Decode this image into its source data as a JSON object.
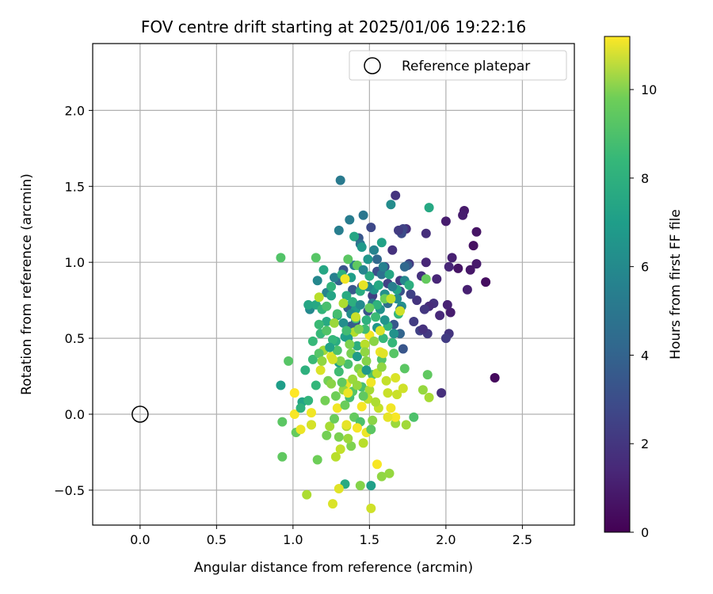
{
  "chart_data": {
    "type": "scatter",
    "title": "FOV centre drift starting at 2025/01/06 19:22:16",
    "xlabel": "Angular distance from reference (arcmin)",
    "ylabel": "Rotation from reference (arcmin)",
    "xlim": [
      -0.31,
      2.84
    ],
    "ylim": [
      -0.73,
      2.44
    ],
    "xticks": [
      0.0,
      0.5,
      1.0,
      1.5,
      2.0,
      2.5
    ],
    "xtick_labels": [
      "0.0",
      "0.5",
      "1.0",
      "1.5",
      "2.0",
      "2.5"
    ],
    "yticks": [
      -0.5,
      0.0,
      0.5,
      1.0,
      1.5,
      2.0
    ],
    "ytick_labels": [
      "−0.5",
      "0.0",
      "0.5",
      "1.0",
      "1.5",
      "2.0"
    ],
    "grid": true,
    "legend": {
      "placement": "upper right",
      "entries": [
        "Reference platepar"
      ]
    },
    "reference_point": {
      "label": "Reference platepar",
      "x": 0.0,
      "y": 0.0
    },
    "colorbar": {
      "label": "Hours from first FF file",
      "colormap": "viridis",
      "min": 0,
      "max": 11.2,
      "ticks": [
        0,
        2,
        4,
        6,
        8,
        10
      ],
      "tick_labels": [
        "0",
        "2",
        "4",
        "6",
        "8",
        "10"
      ]
    },
    "points": [
      [
        2.32,
        0.24,
        0.3
      ],
      [
        2.26,
        0.87,
        0.4
      ],
      [
        2.2,
        1.2,
        0.6
      ],
      [
        2.18,
        1.11,
        0.5
      ],
      [
        2.2,
        0.99,
        0.8
      ],
      [
        2.16,
        0.95,
        0.7
      ],
      [
        2.14,
        0.82,
        1.0
      ],
      [
        2.12,
        1.34,
        0.8
      ],
      [
        2.11,
        1.31,
        0.9
      ],
      [
        2.08,
        0.96,
        0.6
      ],
      [
        2.04,
        1.03,
        1.0
      ],
      [
        2.02,
        0.97,
        1.2
      ],
      [
        2.03,
        0.67,
        0.9
      ],
      [
        2.01,
        0.72,
        1.1
      ],
      [
        2.0,
        1.27,
        0.9
      ],
      [
        2.02,
        0.53,
        1.7
      ],
      [
        2.0,
        0.5,
        2.0
      ],
      [
        1.96,
        0.65,
        1.3
      ],
      [
        1.94,
        0.89,
        1.2
      ],
      [
        1.92,
        0.73,
        1.6
      ],
      [
        1.89,
        0.71,
        1.4
      ],
      [
        1.87,
        1.0,
        1.2
      ],
      [
        1.86,
        0.69,
        1.8
      ],
      [
        1.87,
        1.19,
        1.5
      ],
      [
        1.84,
        0.91,
        1.6
      ],
      [
        1.81,
        0.75,
        1.7
      ],
      [
        1.79,
        0.61,
        2.0
      ],
      [
        1.77,
        0.79,
        2.2
      ],
      [
        1.76,
        0.99,
        1.9
      ],
      [
        1.74,
        1.22,
        1.5
      ],
      [
        1.72,
        1.22,
        2.3
      ],
      [
        1.71,
        1.19,
        2.6
      ],
      [
        1.69,
        1.21,
        2.0
      ],
      [
        1.7,
        0.88,
        1.9
      ],
      [
        1.7,
        0.81,
        2.8
      ],
      [
        1.67,
        1.44,
        1.7
      ],
      [
        1.65,
        1.08,
        1.6
      ],
      [
        1.62,
        0.86,
        2.2
      ],
      [
        1.6,
        0.97,
        2.4
      ],
      [
        1.6,
        0.79,
        2.5
      ],
      [
        1.55,
        0.94,
        2.7
      ],
      [
        1.52,
        0.78,
        2.1
      ],
      [
        1.51,
        1.23,
        2.5
      ],
      [
        1.49,
        0.68,
        2.9
      ],
      [
        1.45,
        0.84,
        2.6
      ],
      [
        1.43,
        1.16,
        3.0
      ],
      [
        1.41,
        0.61,
        2.8
      ],
      [
        1.39,
        0.82,
        3.1
      ],
      [
        1.38,
        0.58,
        3.3
      ],
      [
        1.36,
        0.7,
        3.4
      ],
      [
        1.33,
        0.95,
        2.9
      ],
      [
        1.3,
        0.88,
        3.6
      ],
      [
        1.72,
        0.43,
        3.0
      ],
      [
        1.66,
        0.59,
        3.1
      ],
      [
        1.83,
        0.55,
        2.2
      ],
      [
        1.88,
        0.53,
        1.9
      ],
      [
        1.85,
        0.56,
        1.6
      ],
      [
        1.97,
        0.14,
        1.5
      ],
      [
        1.75,
        0.98,
        3.1
      ],
      [
        1.73,
        0.97,
        3.8
      ],
      [
        1.7,
        0.53,
        3.6
      ],
      [
        1.62,
        0.73,
        4.0
      ],
      [
        1.58,
        0.92,
        4.2
      ],
      [
        1.55,
        1.02,
        3.8
      ],
      [
        1.52,
        0.73,
        4.4
      ],
      [
        1.46,
        1.31,
        4.4
      ],
      [
        1.44,
        1.12,
        4.3
      ],
      [
        1.4,
        0.98,
        4.6
      ],
      [
        1.37,
        1.28,
        4.7
      ],
      [
        1.31,
        1.54,
        4.6
      ],
      [
        1.3,
        1.21,
        4.8
      ],
      [
        1.27,
        0.9,
        4.9
      ],
      [
        1.22,
        0.8,
        5.0
      ],
      [
        1.16,
        0.88,
        5.2
      ],
      [
        1.11,
        0.69,
        5.3
      ],
      [
        1.73,
        0.88,
        5.2
      ],
      [
        1.68,
        0.76,
        5.4
      ],
      [
        1.64,
        1.38,
        5.4
      ],
      [
        1.6,
        0.79,
        5.6
      ],
      [
        1.57,
        0.69,
        5.7
      ],
      [
        1.53,
        0.82,
        5.8
      ],
      [
        1.49,
        1.02,
        5.9
      ],
      [
        1.45,
        1.1,
        6.0
      ],
      [
        1.41,
        0.69,
        6.1
      ],
      [
        1.38,
        0.9,
        6.2
      ],
      [
        1.34,
        0.51,
        6.3
      ],
      [
        1.29,
        0.65,
        6.4
      ],
      [
        1.25,
        0.78,
        6.5
      ],
      [
        1.2,
        0.95,
        6.6
      ],
      [
        1.15,
        0.72,
        6.7
      ],
      [
        1.1,
        0.72,
        6.6
      ],
      [
        1.06,
        0.08,
        6.5
      ],
      [
        0.92,
        0.19,
        6.2
      ],
      [
        1.22,
        0.61,
        6.8
      ],
      [
        1.28,
        0.48,
        6.9
      ],
      [
        1.35,
        0.78,
        6.8
      ],
      [
        1.42,
        0.45,
        7.0
      ],
      [
        1.48,
        0.62,
        7.1
      ],
      [
        1.55,
        0.72,
        7.2
      ],
      [
        1.62,
        0.58,
        7.3
      ],
      [
        1.69,
        0.66,
        7.4
      ],
      [
        1.76,
        0.85,
        7.0
      ],
      [
        1.89,
        1.36,
        6.7
      ],
      [
        1.58,
        1.13,
        6.4
      ],
      [
        1.4,
        1.17,
        6.6
      ],
      [
        1.51,
        -0.47,
        6.3
      ],
      [
        1.34,
        -0.46,
        6.8
      ],
      [
        1.26,
        0.49,
        7.4
      ],
      [
        1.18,
        0.53,
        7.5
      ],
      [
        1.13,
        0.36,
        7.6
      ],
      [
        1.3,
        0.28,
        7.7
      ],
      [
        1.37,
        0.11,
        7.8
      ],
      [
        1.45,
        0.18,
        7.9
      ],
      [
        1.52,
        0.26,
        8.0
      ],
      [
        1.58,
        0.36,
        8.1
      ],
      [
        1.66,
        0.4,
        8.2
      ],
      [
        1.73,
        0.3,
        8.3
      ],
      [
        1.79,
        -0.02,
        8.0
      ],
      [
        1.88,
        0.26,
        8.4
      ],
      [
        1.87,
        0.89,
        8.5
      ],
      [
        1.6,
        0.76,
        8.6
      ],
      [
        1.5,
        0.7,
        8.5
      ],
      [
        1.42,
        0.98,
        8.4
      ],
      [
        1.36,
        1.02,
        8.3
      ],
      [
        1.15,
        1.03,
        8.2
      ],
      [
        0.92,
        1.03,
        8.1
      ],
      [
        0.97,
        0.35,
        8.2
      ],
      [
        0.93,
        -0.05,
        8.3
      ],
      [
        0.93,
        -0.28,
        8.4
      ],
      [
        1.02,
        -0.12,
        8.5
      ],
      [
        1.12,
        -0.07,
        8.6
      ],
      [
        1.16,
        -0.3,
        8.7
      ],
      [
        1.22,
        -0.14,
        8.8
      ],
      [
        1.3,
        -0.15,
        8.9
      ],
      [
        1.38,
        -0.21,
        9.0
      ],
      [
        1.44,
        -0.47,
        9.1
      ],
      [
        1.52,
        -0.04,
        9.2
      ],
      [
        1.58,
        -0.41,
        9.3
      ],
      [
        1.63,
        -0.39,
        9.4
      ],
      [
        1.67,
        -0.06,
        9.5
      ],
      [
        1.74,
        -0.07,
        9.6
      ],
      [
        1.85,
        0.16,
        9.4
      ],
      [
        1.89,
        0.11,
        9.7
      ],
      [
        1.2,
        0.42,
        9.6
      ],
      [
        1.27,
        0.6,
        9.5
      ],
      [
        1.33,
        0.73,
        9.8
      ],
      [
        1.4,
        0.54,
        9.9
      ],
      [
        1.47,
        0.46,
        10.0
      ],
      [
        1.55,
        0.27,
        10.1
      ],
      [
        1.61,
        0.22,
        10.2
      ],
      [
        1.68,
        0.13,
        10.3
      ],
      [
        1.72,
        0.17,
        10.4
      ],
      [
        1.28,
        -0.28,
        10.0
      ],
      [
        1.09,
        -0.53,
        9.8
      ],
      [
        1.24,
        -0.08,
        9.7
      ],
      [
        1.35,
        -0.08,
        9.9
      ],
      [
        1.49,
        0.1,
        10.1
      ],
      [
        1.56,
        0.04,
        10.2
      ],
      [
        1.62,
        0.14,
        10.3
      ],
      [
        1.18,
        0.29,
        10.6
      ],
      [
        1.25,
        0.38,
        10.7
      ],
      [
        1.35,
        0.2,
        10.8
      ],
      [
        1.42,
        0.38,
        10.9
      ],
      [
        1.5,
        0.52,
        11.0
      ],
      [
        1.57,
        0.41,
        10.9
      ],
      [
        1.64,
        0.04,
        11.0
      ],
      [
        1.67,
        -0.02,
        11.1
      ],
      [
        1.55,
        -0.33,
        11.1
      ],
      [
        1.48,
        -0.12,
        10.9
      ],
      [
        1.35,
        -0.07,
        10.8
      ],
      [
        1.26,
        -0.59,
        10.6
      ],
      [
        1.3,
        -0.49,
        10.7
      ],
      [
        1.51,
        -0.62,
        10.4
      ],
      [
        1.12,
        -0.07,
        10.5
      ],
      [
        1.01,
        0.14,
        11.2
      ],
      [
        1.01,
        0.0,
        11.1
      ],
      [
        1.05,
        -0.1,
        10.9
      ],
      [
        1.12,
        0.01,
        11.0
      ],
      [
        1.29,
        0.04,
        11.0
      ],
      [
        1.45,
        0.05,
        11.1
      ],
      [
        1.38,
        0.4,
        8.9
      ],
      [
        1.43,
        0.3,
        9.0
      ],
      [
        1.48,
        0.35,
        9.1
      ],
      [
        1.53,
        0.48,
        9.2
      ],
      [
        1.58,
        0.31,
        9.3
      ],
      [
        1.33,
        0.16,
        9.4
      ],
      [
        1.39,
        0.23,
        9.5
      ],
      [
        1.45,
        0.27,
        9.6
      ],
      [
        1.5,
        0.16,
        9.7
      ],
      [
        1.54,
        0.08,
        9.8
      ],
      [
        1.23,
        0.22,
        8.8
      ],
      [
        1.28,
        0.12,
        8.7
      ],
      [
        1.34,
        0.06,
        8.6
      ],
      [
        1.4,
        -0.02,
        8.5
      ],
      [
        1.46,
        0.12,
        8.4
      ],
      [
        1.51,
        -0.1,
        8.3
      ],
      [
        1.17,
        0.4,
        8.2
      ],
      [
        1.22,
        0.55,
        8.1
      ],
      [
        1.29,
        0.42,
        8.0
      ],
      [
        1.36,
        0.33,
        7.9
      ],
      [
        1.41,
        0.63,
        7.8
      ],
      [
        1.47,
        0.56,
        7.7
      ],
      [
        1.54,
        0.64,
        7.6
      ],
      [
        1.59,
        0.5,
        7.5
      ],
      [
        1.65,
        0.47,
        7.4
      ],
      [
        1.19,
        0.69,
        7.3
      ],
      [
        1.25,
        0.84,
        7.2
      ],
      [
        1.32,
        0.92,
        7.1
      ],
      [
        1.39,
        0.74,
        7.0
      ],
      [
        1.44,
        0.81,
        6.9
      ],
      [
        1.5,
        0.91,
        6.8
      ],
      [
        1.56,
        0.85,
        6.7
      ],
      [
        1.63,
        0.92,
        6.6
      ],
      [
        1.68,
        0.82,
        6.5
      ],
      [
        1.24,
        0.44,
        6.4
      ],
      [
        1.3,
        0.34,
        6.3
      ],
      [
        1.36,
        0.5,
        6.2
      ],
      [
        1.42,
        0.38,
        6.1
      ],
      [
        1.48,
        0.29,
        6.0
      ],
      [
        1.55,
        0.57,
        5.9
      ],
      [
        1.6,
        0.62,
        5.8
      ],
      [
        1.66,
        0.53,
        5.7
      ],
      [
        1.71,
        0.71,
        5.6
      ],
      [
        1.33,
        0.6,
        5.5
      ],
      [
        1.38,
        0.66,
        5.4
      ],
      [
        1.44,
        0.72,
        5.3
      ],
      [
        1.49,
        0.84,
        5.2
      ],
      [
        1.46,
        0.95,
        5.1
      ],
      [
        1.53,
        1.08,
        5.0
      ],
      [
        1.59,
        0.97,
        4.9
      ],
      [
        1.65,
        0.84,
        4.8
      ],
      [
        1.7,
        0.69,
        4.7
      ],
      [
        1.19,
        0.35,
        9.3
      ],
      [
        1.25,
        0.2,
        9.2
      ],
      [
        1.31,
        0.35,
        9.1
      ],
      [
        1.37,
        0.46,
        9.0
      ],
      [
        1.43,
        0.56,
        8.9
      ],
      [
        1.21,
        0.09,
        8.8
      ],
      [
        1.27,
        -0.03,
        8.6
      ],
      [
        1.32,
        0.21,
        8.4
      ],
      [
        1.39,
        0.15,
        8.2
      ],
      [
        1.44,
        -0.05,
        8.0
      ],
      [
        1.22,
        0.71,
        7.9
      ],
      [
        1.29,
        0.66,
        7.8
      ],
      [
        1.35,
        0.55,
        7.7
      ],
      [
        1.17,
        0.59,
        7.6
      ],
      [
        1.13,
        0.48,
        7.5
      ],
      [
        1.15,
        0.19,
        7.4
      ],
      [
        1.1,
        0.09,
        7.3
      ],
      [
        1.05,
        0.04,
        7.2
      ],
      [
        1.08,
        0.29,
        7.1
      ],
      [
        1.64,
        0.76,
        10.2
      ],
      [
        1.7,
        0.68,
        10.4
      ],
      [
        1.57,
        0.55,
        10.6
      ],
      [
        1.46,
        0.85,
        10.8
      ],
      [
        1.34,
        0.89,
        11.0
      ],
      [
        1.17,
        0.77,
        10.0
      ],
      [
        1.41,
        0.64,
        10.3
      ],
      [
        1.26,
        0.36,
        10.5
      ],
      [
        1.36,
        0.14,
        10.9
      ],
      [
        1.51,
        0.21,
        11.0
      ],
      [
        1.59,
        0.4,
        10.7
      ],
      [
        1.67,
        0.24,
        10.6
      ],
      [
        1.62,
        -0.02,
        10.8
      ],
      [
        1.42,
        -0.09,
        11.1
      ],
      [
        1.31,
        -0.23,
        10.2
      ],
      [
        1.46,
        -0.19,
        10.0
      ],
      [
        1.36,
        -0.16,
        9.5
      ],
      [
        1.42,
        0.19,
        9.4
      ],
      [
        1.47,
        0.41,
        9.3
      ]
    ]
  }
}
